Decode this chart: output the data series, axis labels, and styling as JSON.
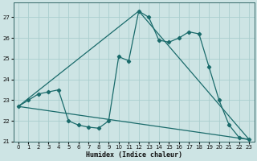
{
  "xlabel": "Humidex (Indice chaleur)",
  "bg_color": "#cde4e4",
  "grid_color": "#aacece",
  "line_color": "#1a6b6b",
  "xlim": [
    -0.5,
    23.5
  ],
  "ylim": [
    21.0,
    27.7
  ],
  "yticks": [
    21,
    22,
    23,
    24,
    25,
    26,
    27
  ],
  "xticks": [
    0,
    1,
    2,
    3,
    4,
    5,
    6,
    7,
    8,
    9,
    10,
    11,
    12,
    13,
    14,
    15,
    16,
    17,
    18,
    19,
    20,
    21,
    22,
    23
  ],
  "series": [
    {
      "x": [
        0,
        1,
        2,
        3,
        4,
        5,
        6,
        7,
        8,
        9,
        10,
        11,
        12,
        13,
        14,
        15,
        16,
        17,
        18,
        19,
        20,
        21,
        22,
        23
      ],
      "y": [
        22.7,
        23.0,
        23.3,
        23.4,
        23.5,
        22.0,
        21.8,
        21.7,
        21.65,
        22.0,
        25.1,
        24.9,
        27.3,
        27.0,
        25.9,
        25.8,
        26.0,
        26.3,
        26.2,
        24.6,
        23.0,
        21.8,
        21.2,
        21.1
      ],
      "marker": true
    },
    {
      "x": [
        0,
        23
      ],
      "y": [
        22.7,
        21.1
      ],
      "marker": false
    },
    {
      "x": [
        0,
        12
      ],
      "y": [
        22.7,
        27.3
      ],
      "marker": false
    },
    {
      "x": [
        12,
        23
      ],
      "y": [
        27.3,
        21.1
      ],
      "marker": false
    }
  ],
  "figwidth": 3.2,
  "figheight": 2.0,
  "dpi": 100
}
